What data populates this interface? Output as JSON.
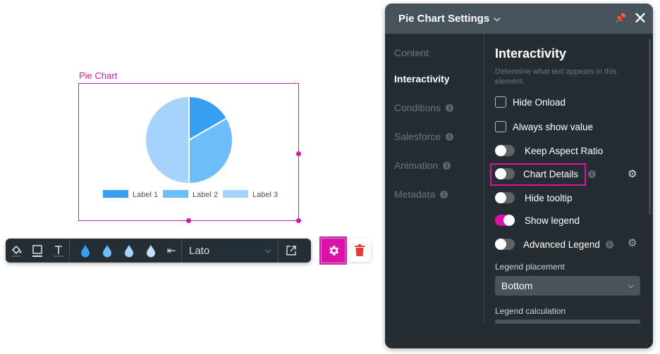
{
  "element": {
    "title": "Pie Chart"
  },
  "chart_data": {
    "type": "pie",
    "categories": [
      "Label 1",
      "Label 2",
      "Label 3"
    ],
    "values": [
      1,
      2,
      3
    ],
    "colors": [
      "#369ff2",
      "#6cbdfa",
      "#a4d3fb"
    ],
    "legend_placement": "bottom"
  },
  "toolbar": {
    "font": "Lato",
    "drop_colors": [
      "#369ff2",
      "#6cbdfa",
      "#a4d3fb",
      "#c3e1fb"
    ]
  },
  "panel": {
    "title": "Pie Chart Settings",
    "nav": [
      {
        "label": "Content"
      },
      {
        "label": "Interactivity"
      },
      {
        "label": "Conditions"
      },
      {
        "label": "Salesforce"
      },
      {
        "label": "Animation"
      },
      {
        "label": "Metadata"
      }
    ],
    "section_title": "Interactivity",
    "description": "Determine what text appears in this element.",
    "options": {
      "hide_onload": "Hide Onload",
      "always_show": "Always show value",
      "keep_aspect": "Keep Aspect Ratio",
      "chart_details": "Chart Details",
      "hide_tooltip": "Hide tooltip",
      "show_legend": "Show legend",
      "advanced_legend": "Advanced Legend"
    },
    "toggles": {
      "hide_onload": false,
      "always_show": false,
      "keep_aspect": false,
      "chart_details": false,
      "hide_tooltip": false,
      "show_legend": true,
      "advanced_legend": false
    },
    "legend_placement_label": "Legend placement",
    "legend_placement_value": "Bottom",
    "legend_calc_label": "Legend calculation"
  },
  "accent": "#dc12a8"
}
